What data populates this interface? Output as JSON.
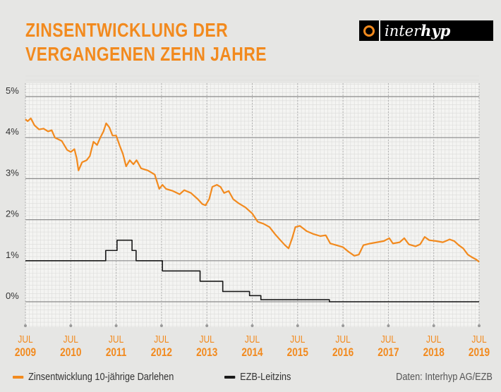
{
  "title_lines": [
    "ZINSENTWICKLUNG DER",
    "VERGANGENEN ZEHN JAHRE"
  ],
  "logo": {
    "prefix": "inter",
    "suffix": "hyp"
  },
  "source": "Daten: Interhyp AG/EZB",
  "colors": {
    "orange": "#f28a1e",
    "black": "#1a1a1a"
  },
  "chart_data": {
    "type": "line",
    "title": "Zinsentwicklung der vergangenen zehn Jahre",
    "xlim": [
      2009.5,
      2019.5
    ],
    "ylim": [
      -0.6,
      5.5
    ],
    "yticks": [
      0,
      1,
      2,
      3,
      4,
      5
    ],
    "ytick_labels": [
      "0%",
      "1%",
      "2%",
      "3%",
      "4%",
      "5%"
    ],
    "xticks": [
      {
        "x": 2009.5,
        "month": "JUL",
        "year": "2009"
      },
      {
        "x": 2010.5,
        "month": "JUL",
        "year": "2010"
      },
      {
        "x": 2011.5,
        "month": "JUL",
        "year": "2011"
      },
      {
        "x": 2012.5,
        "month": "JUL",
        "year": "2012"
      },
      {
        "x": 2013.5,
        "month": "JUL",
        "year": "2013"
      },
      {
        "x": 2014.5,
        "month": "JUL",
        "year": "2014"
      },
      {
        "x": 2015.5,
        "month": "JUL",
        "year": "2015"
      },
      {
        "x": 2016.5,
        "month": "JUL",
        "year": "2016"
      },
      {
        "x": 2017.5,
        "month": "JUL",
        "year": "2017"
      },
      {
        "x": 2018.5,
        "month": "JUL",
        "year": "2018"
      },
      {
        "x": 2019.5,
        "month": "JUL",
        "year": "2019"
      }
    ],
    "grid": true,
    "legend_position": "bottom-left",
    "series": [
      {
        "name": "Zinsentwicklung 10-jährige Darlehen",
        "color": "#f28a1e",
        "step": false,
        "points": [
          [
            2009.5,
            4.45
          ],
          [
            2009.55,
            4.4
          ],
          [
            2009.62,
            4.47
          ],
          [
            2009.7,
            4.3
          ],
          [
            2009.8,
            4.2
          ],
          [
            2009.9,
            4.22
          ],
          [
            2010.0,
            4.15
          ],
          [
            2010.08,
            4.18
          ],
          [
            2010.15,
            4.0
          ],
          [
            2010.3,
            3.92
          ],
          [
            2010.42,
            3.7
          ],
          [
            2010.5,
            3.65
          ],
          [
            2010.58,
            3.72
          ],
          [
            2010.63,
            3.5
          ],
          [
            2010.67,
            3.2
          ],
          [
            2010.75,
            3.4
          ],
          [
            2010.85,
            3.45
          ],
          [
            2010.92,
            3.55
          ],
          [
            2011.0,
            3.9
          ],
          [
            2011.08,
            3.82
          ],
          [
            2011.15,
            4.0
          ],
          [
            2011.22,
            4.15
          ],
          [
            2011.28,
            4.35
          ],
          [
            2011.35,
            4.25
          ],
          [
            2011.42,
            4.05
          ],
          [
            2011.5,
            4.05
          ],
          [
            2011.58,
            3.8
          ],
          [
            2011.65,
            3.6
          ],
          [
            2011.72,
            3.3
          ],
          [
            2011.8,
            3.45
          ],
          [
            2011.88,
            3.35
          ],
          [
            2011.95,
            3.45
          ],
          [
            2012.05,
            3.25
          ],
          [
            2012.2,
            3.2
          ],
          [
            2012.35,
            3.1
          ],
          [
            2012.45,
            2.75
          ],
          [
            2012.52,
            2.85
          ],
          [
            2012.6,
            2.75
          ],
          [
            2012.75,
            2.7
          ],
          [
            2012.9,
            2.62
          ],
          [
            2013.0,
            2.72
          ],
          [
            2013.15,
            2.65
          ],
          [
            2013.3,
            2.5
          ],
          [
            2013.4,
            2.38
          ],
          [
            2013.47,
            2.35
          ],
          [
            2013.55,
            2.5
          ],
          [
            2013.62,
            2.8
          ],
          [
            2013.72,
            2.85
          ],
          [
            2013.8,
            2.8
          ],
          [
            2013.88,
            2.65
          ],
          [
            2013.98,
            2.7
          ],
          [
            2014.08,
            2.5
          ],
          [
            2014.2,
            2.4
          ],
          [
            2014.35,
            2.3
          ],
          [
            2014.5,
            2.15
          ],
          [
            2014.62,
            1.95
          ],
          [
            2014.75,
            1.9
          ],
          [
            2014.88,
            1.82
          ],
          [
            2015.0,
            1.65
          ],
          [
            2015.12,
            1.5
          ],
          [
            2015.22,
            1.38
          ],
          [
            2015.3,
            1.3
          ],
          [
            2015.38,
            1.55
          ],
          [
            2015.45,
            1.82
          ],
          [
            2015.55,
            1.85
          ],
          [
            2015.7,
            1.72
          ],
          [
            2015.85,
            1.65
          ],
          [
            2016.0,
            1.6
          ],
          [
            2016.12,
            1.62
          ],
          [
            2016.22,
            1.42
          ],
          [
            2016.35,
            1.38
          ],
          [
            2016.5,
            1.33
          ],
          [
            2016.62,
            1.22
          ],
          [
            2016.75,
            1.12
          ],
          [
            2016.85,
            1.15
          ],
          [
            2016.95,
            1.38
          ],
          [
            2017.1,
            1.42
          ],
          [
            2017.25,
            1.45
          ],
          [
            2017.4,
            1.48
          ],
          [
            2017.52,
            1.55
          ],
          [
            2017.6,
            1.42
          ],
          [
            2017.75,
            1.45
          ],
          [
            2017.85,
            1.55
          ],
          [
            2017.95,
            1.4
          ],
          [
            2018.1,
            1.35
          ],
          [
            2018.2,
            1.4
          ],
          [
            2018.3,
            1.58
          ],
          [
            2018.4,
            1.5
          ],
          [
            2018.55,
            1.48
          ],
          [
            2018.7,
            1.45
          ],
          [
            2018.85,
            1.52
          ],
          [
            2018.95,
            1.48
          ],
          [
            2019.05,
            1.38
          ],
          [
            2019.15,
            1.3
          ],
          [
            2019.25,
            1.15
          ],
          [
            2019.35,
            1.08
          ],
          [
            2019.45,
            1.02
          ],
          [
            2019.5,
            0.97
          ]
        ]
      },
      {
        "name": "EZB-Leitzins",
        "color": "#1a1a1a",
        "step": true,
        "points": [
          [
            2009.5,
            1.0
          ],
          [
            2011.27,
            1.25
          ],
          [
            2011.52,
            1.5
          ],
          [
            2011.85,
            1.25
          ],
          [
            2011.94,
            1.0
          ],
          [
            2012.52,
            0.75
          ],
          [
            2013.35,
            0.5
          ],
          [
            2013.85,
            0.25
          ],
          [
            2014.44,
            0.15
          ],
          [
            2014.69,
            0.05
          ],
          [
            2016.2,
            0.0
          ],
          [
            2019.5,
            0.0
          ]
        ]
      }
    ]
  }
}
